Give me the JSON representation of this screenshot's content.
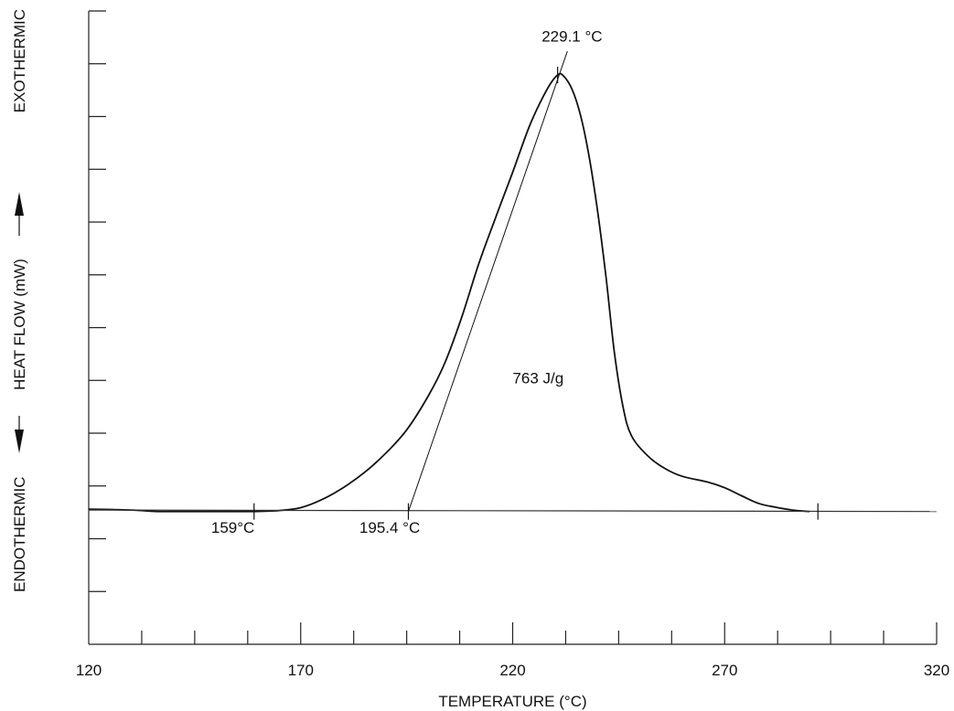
{
  "chart_data": {
    "type": "line",
    "title": "",
    "xlabel": "TEMPERATURE (°C)",
    "ylabel": {
      "lower": "ENDOTHERMIC",
      "middle": "HEAT FLOW (mW)",
      "upper": "EXOTHERMIC"
    },
    "xlim": [
      120,
      320
    ],
    "x_tick_labels": [
      "120",
      "170",
      "220",
      "270",
      "320"
    ],
    "x_major_ticks": [
      120,
      170,
      220,
      270,
      320
    ],
    "x_minor_step": 12.5,
    "y_unlabeled_ticks": 11,
    "grid": false,
    "series": [
      {
        "points": [
          [
            120,
            -0.15
          ],
          [
            130,
            -0.17
          ],
          [
            136,
            -0.2
          ],
          [
            140,
            -0.2
          ],
          [
            150,
            -0.2
          ],
          [
            159,
            -0.2
          ],
          [
            165,
            -0.18
          ],
          [
            170,
            -0.12
          ],
          [
            175,
            0.05
          ],
          [
            180,
            0.3
          ],
          [
            185,
            0.62
          ],
          [
            190,
            1.02
          ],
          [
            195,
            1.52
          ],
          [
            200,
            2.22
          ],
          [
            204,
            2.93
          ],
          [
            208,
            3.9
          ],
          [
            212,
            5.02
          ],
          [
            216,
            6.0
          ],
          [
            220,
            6.95
          ],
          [
            224,
            7.93
          ],
          [
            228,
            8.68
          ],
          [
            230.6,
            9.0
          ],
          [
            232,
            8.98
          ],
          [
            234,
            8.7
          ],
          [
            236,
            8.15
          ],
          [
            238,
            7.3
          ],
          [
            240,
            6.15
          ],
          [
            242,
            4.75
          ],
          [
            244,
            3.15
          ],
          [
            246,
            2.02
          ],
          [
            248,
            1.4
          ],
          [
            252,
            0.96
          ],
          [
            256,
            0.7
          ],
          [
            260,
            0.54
          ],
          [
            266,
            0.42
          ],
          [
            270,
            0.3
          ],
          [
            274,
            0.13
          ],
          [
            278,
            -0.03
          ],
          [
            282,
            -0.11
          ],
          [
            286,
            -0.17
          ],
          [
            290,
            -0.2
          ]
        ]
      },
      {
        "points": [
          [
            120,
            -0.17
          ],
          [
            320,
            -0.2
          ]
        ]
      },
      {
        "points": [
          [
            195.4,
            -0.2
          ],
          [
            232.9,
            9.5
          ]
        ]
      }
    ],
    "annotations": [
      {
        "text": "229.1 °C",
        "x": 234,
        "y": 9.7
      },
      {
        "text": "159°C",
        "x": 154,
        "y": -0.65
      },
      {
        "text": "195.4 °C",
        "x": 191,
        "y": -0.65
      },
      {
        "text": "763 J/g",
        "x": 226,
        "y": 2.5
      }
    ],
    "marker_ticks_x": [
      159,
      195.4,
      229.1,
      292
    ]
  }
}
